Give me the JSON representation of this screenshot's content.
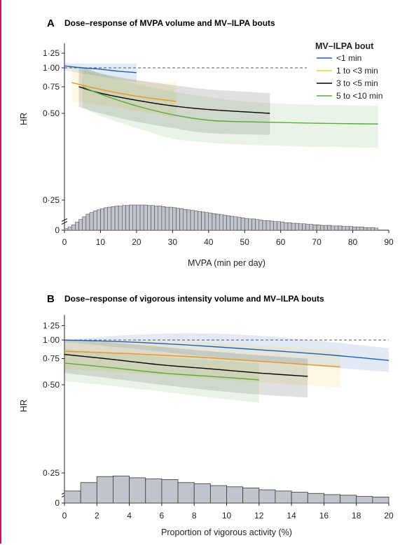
{
  "colors": {
    "series": [
      "#1f5fb4",
      "#f2d230",
      "#000000",
      "#5aaa3c"
    ],
    "line_orange": "#e8962e",
    "hist_fill": "#c0c5cc",
    "hist_stroke": "#3a3a3a",
    "reference_line": "#555555",
    "frame": "#c8145a"
  },
  "legend": {
    "title": "MV–ILPA bout",
    "entries": [
      "<1 min",
      "1 to <3 min",
      "3 to <5 min",
      "5 to <10 min"
    ]
  },
  "chart_data": [
    {
      "panel": "A",
      "type": "line",
      "title": "Dose–response of MVPA volume and MV–ILPA bouts",
      "xlabel": "MVPA (min per day)",
      "ylabel": "HR",
      "xlim": [
        0,
        90
      ],
      "xticks": [
        0,
        10,
        20,
        30,
        40,
        50,
        60,
        70,
        80,
        90
      ],
      "yticks": [
        0,
        0.25,
        0.5,
        0.75,
        1.0,
        1.25
      ],
      "ytick_labels": [
        "0",
        "0·25",
        "0·50",
        "0·75",
        "1·00",
        "1·25"
      ],
      "y_scale": "log",
      "reference_line": 1.0,
      "legend_position": "top-right",
      "series": [
        {
          "name": "<1 min",
          "x": [
            0,
            5,
            10,
            15,
            20
          ],
          "y": [
            1.03,
            1.0,
            0.98,
            0.95,
            0.93
          ],
          "ci_lower": [
            0.96,
            0.92,
            0.88,
            0.84,
            0.8
          ],
          "ci_upper": [
            1.07,
            1.07,
            1.07,
            1.07,
            1.07
          ]
        },
        {
          "name": "1 to <3 min",
          "x": [
            2,
            10,
            20,
            31
          ],
          "y": [
            0.8,
            0.72,
            0.65,
            0.6
          ],
          "ci_lower": [
            0.6,
            0.57,
            0.52,
            0.47
          ],
          "ci_upper": [
            1.02,
            0.9,
            0.83,
            0.8
          ]
        },
        {
          "name": "3 to <5 min",
          "x": [
            4,
            10,
            20,
            30,
            40,
            57
          ],
          "y": [
            0.75,
            0.68,
            0.61,
            0.56,
            0.53,
            0.5
          ],
          "ci_lower": [
            0.55,
            0.5,
            0.44,
            0.4,
            0.37,
            0.36
          ],
          "ci_upper": [
            1.03,
            0.92,
            0.83,
            0.77,
            0.72,
            0.68
          ]
        },
        {
          "name": "5 to <10 min",
          "x": [
            5,
            10,
            20,
            30,
            40,
            50,
            60,
            70,
            87
          ],
          "y": [
            0.75,
            0.67,
            0.56,
            0.49,
            0.45,
            0.44,
            0.435,
            0.43,
            0.425
          ],
          "ci_lower": [
            0.55,
            0.48,
            0.4,
            0.34,
            0.32,
            0.31,
            0.305,
            0.3,
            0.295
          ],
          "ci_upper": [
            1.02,
            0.92,
            0.78,
            0.7,
            0.64,
            0.6,
            0.58,
            0.57,
            0.56
          ]
        }
      ],
      "histogram": {
        "bin_start": 0,
        "bin_width": 1,
        "counts": [
          0.003,
          0.006,
          0.01,
          0.015,
          0.02,
          0.025,
          0.03,
          0.033,
          0.036,
          0.038,
          0.04,
          0.042,
          0.043,
          0.044,
          0.045,
          0.045,
          0.046,
          0.046,
          0.047,
          0.047,
          0.047,
          0.047,
          0.047,
          0.046,
          0.046,
          0.045,
          0.045,
          0.044,
          0.043,
          0.043,
          0.042,
          0.041,
          0.04,
          0.039,
          0.038,
          0.037,
          0.036,
          0.035,
          0.034,
          0.033,
          0.032,
          0.031,
          0.03,
          0.029,
          0.028,
          0.027,
          0.026,
          0.025,
          0.024,
          0.023,
          0.022,
          0.021,
          0.021,
          0.02,
          0.019,
          0.018,
          0.018,
          0.017,
          0.016,
          0.016,
          0.015,
          0.014,
          0.014,
          0.013,
          0.013,
          0.012,
          0.012,
          0.011,
          0.011,
          0.01,
          0.01,
          0.009,
          0.009,
          0.009,
          0.008,
          0.008,
          0.008,
          0.007,
          0.007,
          0.007,
          0.006,
          0.006,
          0.006,
          0.005,
          0.005,
          0.005,
          0.004
        ]
      }
    },
    {
      "panel": "B",
      "type": "line",
      "title": "Dose–response of vigorous intensity volume and MV–ILPA bouts",
      "xlabel": "Proportion of vigorous activity (%)",
      "ylabel": "HR",
      "xlim": [
        0,
        20
      ],
      "xticks": [
        0,
        2,
        4,
        6,
        8,
        10,
        12,
        14,
        16,
        18,
        20
      ],
      "yticks": [
        0,
        0.25,
        0.5,
        0.75,
        1.0,
        1.25
      ],
      "ytick_labels": [
        "0",
        "0·25",
        "0·50",
        "0·75",
        "1·00",
        "1·25"
      ],
      "y_scale": "log",
      "reference_line": 1.0,
      "series": [
        {
          "name": "<1 min",
          "x": [
            0,
            4,
            8,
            12,
            16,
            20
          ],
          "y": [
            1.0,
            0.97,
            0.92,
            0.86,
            0.8,
            0.73
          ],
          "ci_lower": [
            0.97,
            0.88,
            0.79,
            0.72,
            0.66,
            0.61
          ],
          "ci_upper": [
            1.0,
            1.08,
            1.11,
            1.07,
            0.98,
            0.88
          ]
        },
        {
          "name": "1 to <3 min",
          "x": [
            0,
            4,
            8,
            12,
            17
          ],
          "y": [
            0.84,
            0.81,
            0.77,
            0.72,
            0.66
          ],
          "ci_lower": [
            0.64,
            0.6,
            0.56,
            0.52,
            0.48
          ],
          "ci_upper": [
            1.0,
            1.0,
            0.97,
            0.92,
            0.85
          ]
        },
        {
          "name": "3 to <5 min",
          "x": [
            0,
            3,
            6,
            9,
            12,
            15
          ],
          "y": [
            0.8,
            0.74,
            0.68,
            0.64,
            0.6,
            0.57
          ],
          "ci_lower": [
            0.6,
            0.55,
            0.5,
            0.46,
            0.43,
            0.41
          ],
          "ci_upper": [
            1.0,
            0.96,
            0.9,
            0.84,
            0.79,
            0.75
          ]
        },
        {
          "name": "5 to <10 min",
          "x": [
            0,
            3,
            6,
            9,
            12
          ],
          "y": [
            0.7,
            0.65,
            0.6,
            0.57,
            0.54
          ],
          "ci_lower": [
            0.53,
            0.49,
            0.45,
            0.41,
            0.38
          ],
          "ci_upper": [
            0.87,
            0.82,
            0.77,
            0.73,
            0.7
          ]
        }
      ],
      "histogram": {
        "bin_start": 0,
        "bin_width": 1,
        "counts": [
          0.1,
          0.17,
          0.22,
          0.225,
          0.21,
          0.2,
          0.195,
          0.17,
          0.16,
          0.145,
          0.135,
          0.125,
          0.11,
          0.1,
          0.09,
          0.08,
          0.07,
          0.065,
          0.055,
          0.05
        ]
      }
    }
  ]
}
